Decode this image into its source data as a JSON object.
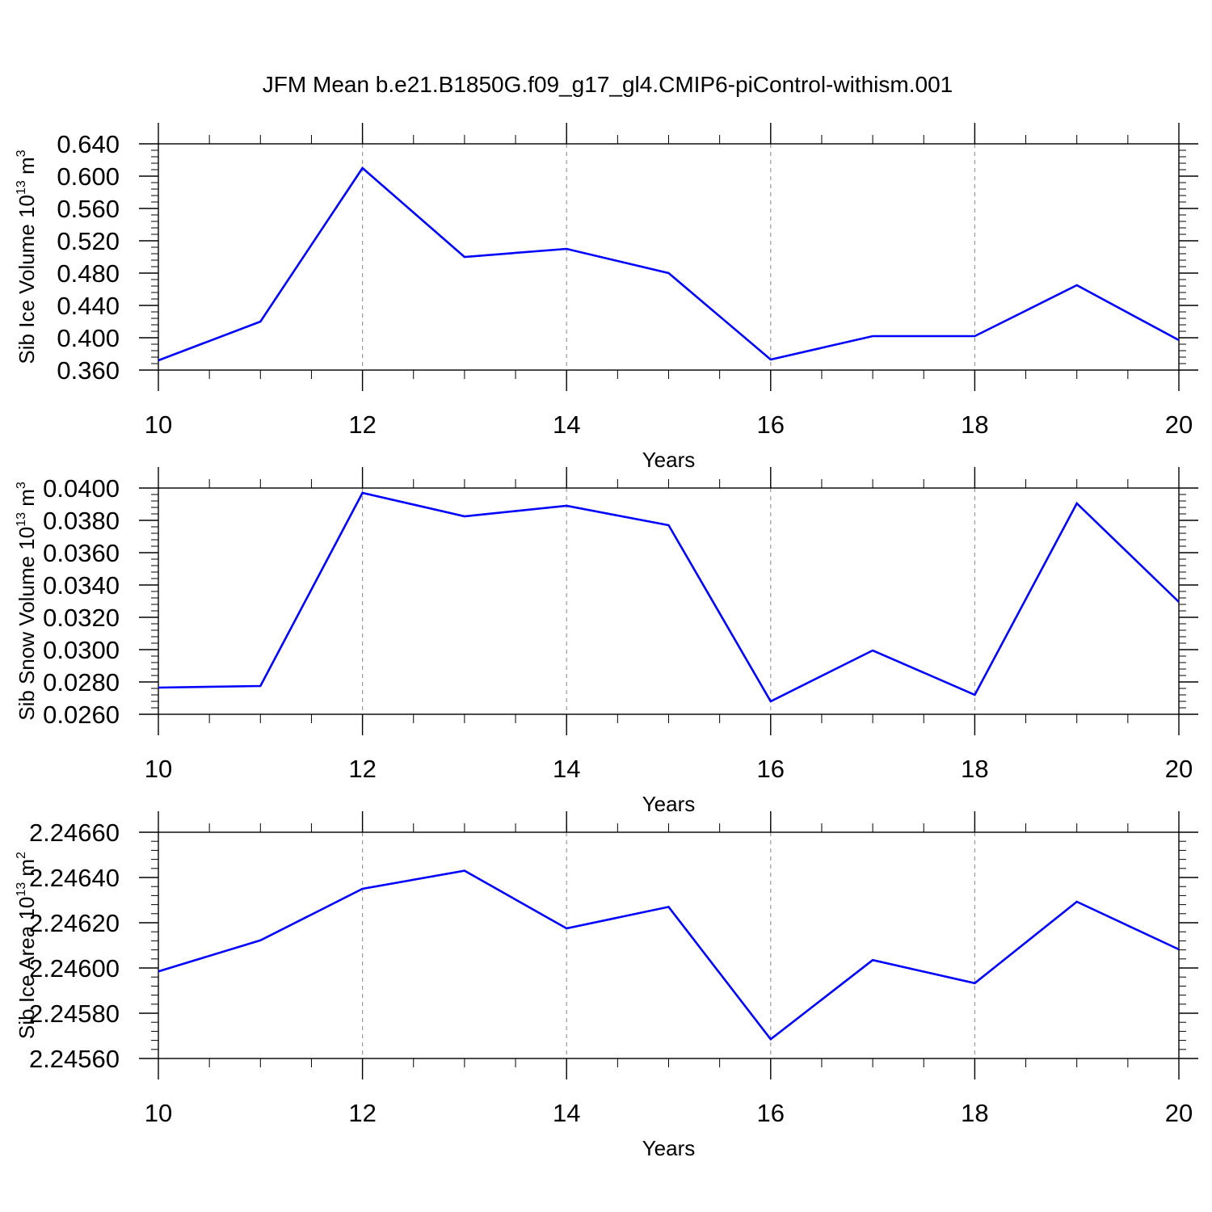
{
  "title": "JFM Mean b.e21.B1850G.f09_g17_gl4.CMIP6-piControl-withism.001",
  "colors": {
    "line": "#0000ff",
    "axis": "#000000",
    "grid": "#999999",
    "background": "#ffffff"
  },
  "chart_data": [
    {
      "type": "line",
      "ylabel_main": "Sib Ice Volume 10",
      "ylabel_exp": "13",
      "ylabel_unit": " m",
      "ylabel_unit_exp": "3",
      "xlabel": "Years",
      "xlim": [
        10,
        20
      ],
      "ylim": [
        0.36,
        0.64
      ],
      "xticks": [
        "10",
        "12",
        "14",
        "16",
        "18",
        "20"
      ],
      "yticks": [
        "0.360",
        "0.400",
        "0.440",
        "0.480",
        "0.520",
        "0.560",
        "0.600",
        "0.640"
      ],
      "x": [
        10,
        11,
        12,
        13,
        14,
        15,
        16,
        17,
        18,
        19,
        20
      ],
      "values": [
        0.372,
        0.42,
        0.61,
        0.5,
        0.51,
        0.48,
        0.373,
        0.402,
        0.402,
        0.465,
        0.397
      ]
    },
    {
      "type": "line",
      "ylabel_main": "Sib Snow Volume 10",
      "ylabel_exp": "13",
      "ylabel_unit": " m",
      "ylabel_unit_exp": "3",
      "xlabel": "Years",
      "xlim": [
        10,
        20
      ],
      "ylim": [
        0.026,
        0.04
      ],
      "xticks": [
        "10",
        "12",
        "14",
        "16",
        "18",
        "20"
      ],
      "yticks": [
        "0.0260",
        "0.0280",
        "0.0300",
        "0.0320",
        "0.0340",
        "0.0360",
        "0.0380",
        "0.0400"
      ],
      "x": [
        10,
        11,
        12,
        13,
        14,
        15,
        16,
        17,
        18,
        19,
        20
      ],
      "values": [
        0.02765,
        0.02775,
        0.0397,
        0.03825,
        0.0389,
        0.0377,
        0.0268,
        0.02995,
        0.0272,
        0.03905,
        0.03295
      ]
    },
    {
      "type": "line",
      "ylabel_main": "Sib Ice Area 10",
      "ylabel_exp": "13",
      "ylabel_unit": " m",
      "ylabel_unit_exp": "2",
      "xlabel": "Years",
      "xlim": [
        10,
        20
      ],
      "ylim": [
        2.2456,
        2.2466
      ],
      "xticks": [
        "10",
        "12",
        "14",
        "16",
        "18",
        "20"
      ],
      "yticks": [
        "2.24560",
        "2.24580",
        "2.24600",
        "2.24620",
        "2.24640",
        "2.24660"
      ],
      "x": [
        10,
        11,
        12,
        13,
        14,
        15,
        16,
        17,
        18,
        19,
        20
      ],
      "values": [
        2.245985,
        2.246122,
        2.24635,
        2.24643,
        2.246175,
        2.24627,
        2.245685,
        2.246035,
        2.245933,
        2.246293,
        2.246082
      ]
    }
  ]
}
